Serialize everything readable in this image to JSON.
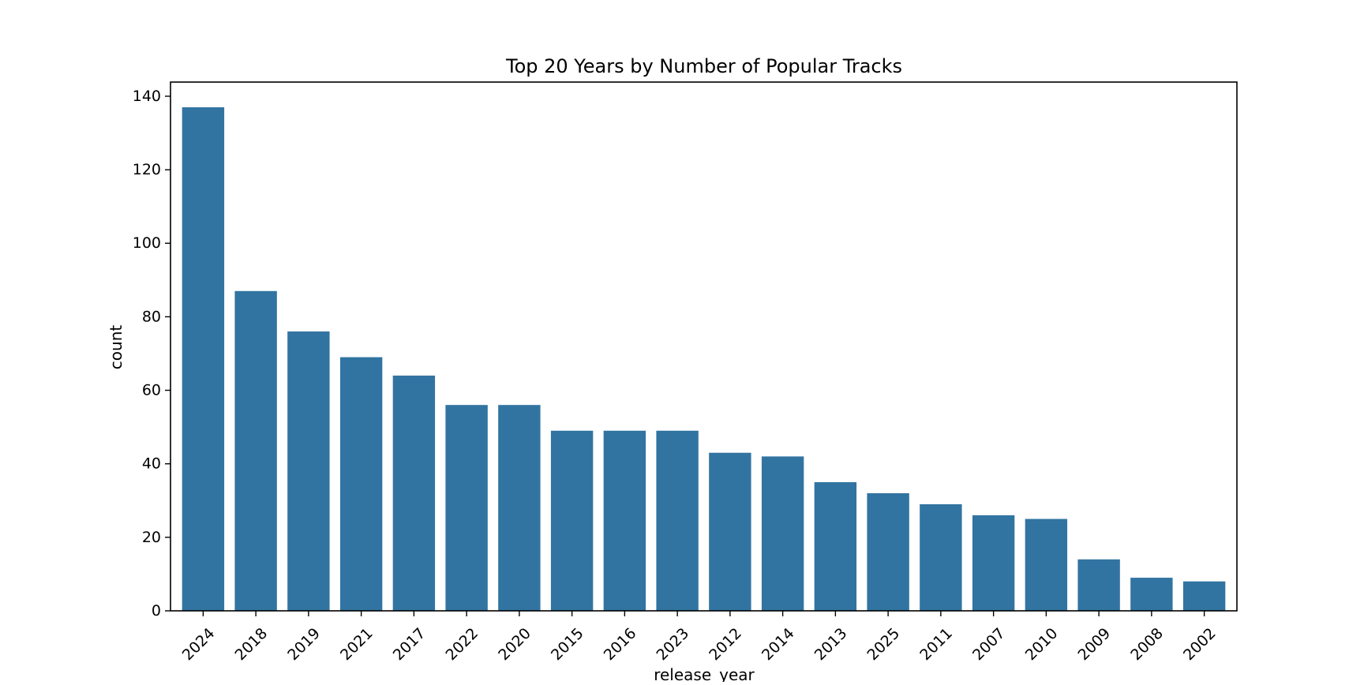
{
  "chart_data": {
    "type": "bar",
    "title": "Top 20 Years by Number of Popular Tracks",
    "xlabel": "release_year",
    "ylabel": "count",
    "categories": [
      "2024",
      "2018",
      "2019",
      "2021",
      "2017",
      "2022",
      "2020",
      "2015",
      "2016",
      "2023",
      "2012",
      "2014",
      "2013",
      "2025",
      "2011",
      "2007",
      "2010",
      "2009",
      "2008",
      "2002"
    ],
    "values": [
      137,
      87,
      76,
      69,
      64,
      56,
      56,
      49,
      49,
      49,
      43,
      42,
      35,
      32,
      29,
      26,
      25,
      14,
      9,
      8
    ],
    "ylim": [
      0,
      143.85
    ],
    "yticks": [
      0,
      20,
      40,
      60,
      80,
      100,
      120,
      140
    ],
    "bar_color": "#3274a1",
    "grid": false,
    "legend": "none",
    "xtick_rotation_deg": 45
  }
}
